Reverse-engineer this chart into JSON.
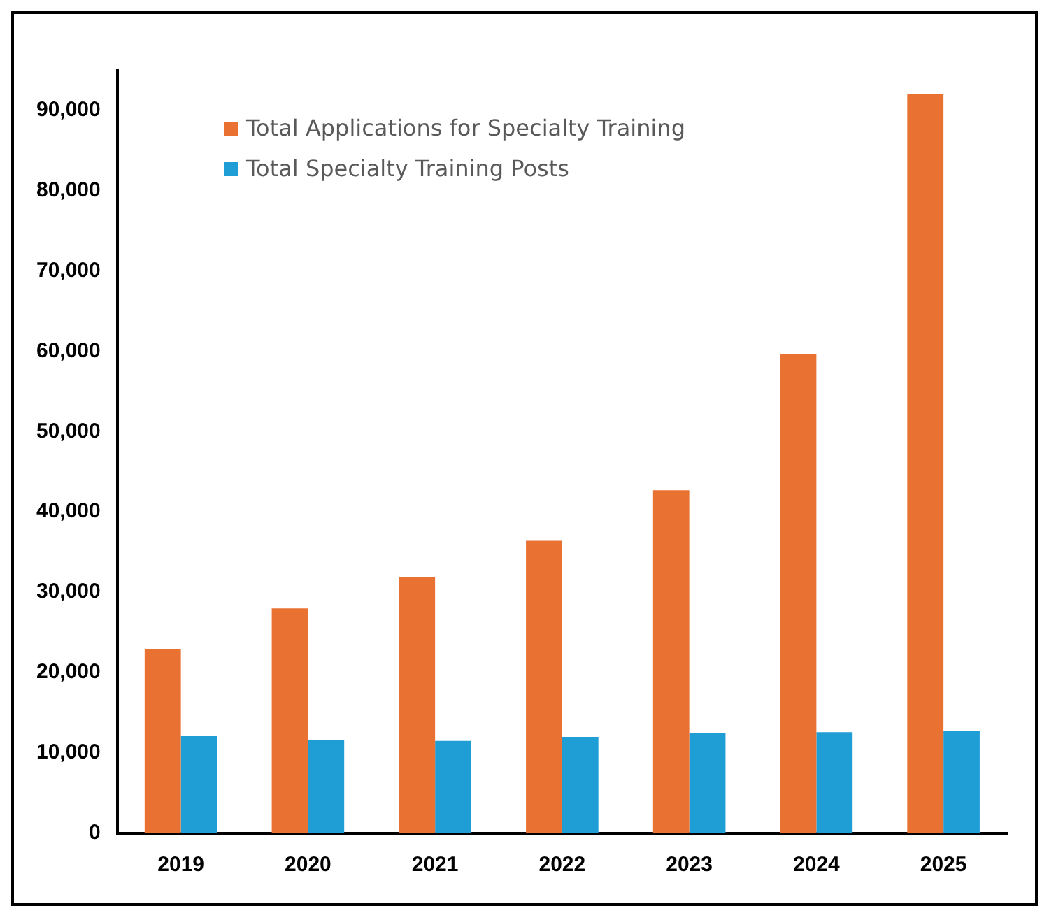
{
  "chart_data": {
    "type": "bar",
    "categories": [
      "2019",
      "2020",
      "2021",
      "2022",
      "2023",
      "2024",
      "2025"
    ],
    "series": [
      {
        "name": "Total Applications for Specialty Training",
        "color": "#e97132",
        "values": [
          22900,
          28000,
          31900,
          36400,
          42700,
          59600,
          92000
        ]
      },
      {
        "name": "Total Specialty Training Posts",
        "color": "#1f9ed6",
        "values": [
          12100,
          11600,
          11500,
          12000,
          12500,
          12600,
          12700
        ]
      }
    ],
    "ylim": [
      0,
      95000
    ],
    "yticks": [
      {
        "value": 0,
        "label": "0"
      },
      {
        "value": 10000,
        "label": "10,000"
      },
      {
        "value": 20000,
        "label": "20,000"
      },
      {
        "value": 30000,
        "label": "30,000"
      },
      {
        "value": 40000,
        "label": "40,000"
      },
      {
        "value": 50000,
        "label": "50,000"
      },
      {
        "value": 60000,
        "label": "60,000"
      },
      {
        "value": 70000,
        "label": "70,000"
      },
      {
        "value": 80000,
        "label": "80,000"
      },
      {
        "value": 90000,
        "label": "90,000"
      }
    ],
    "grid": false,
    "legend": "top left"
  }
}
